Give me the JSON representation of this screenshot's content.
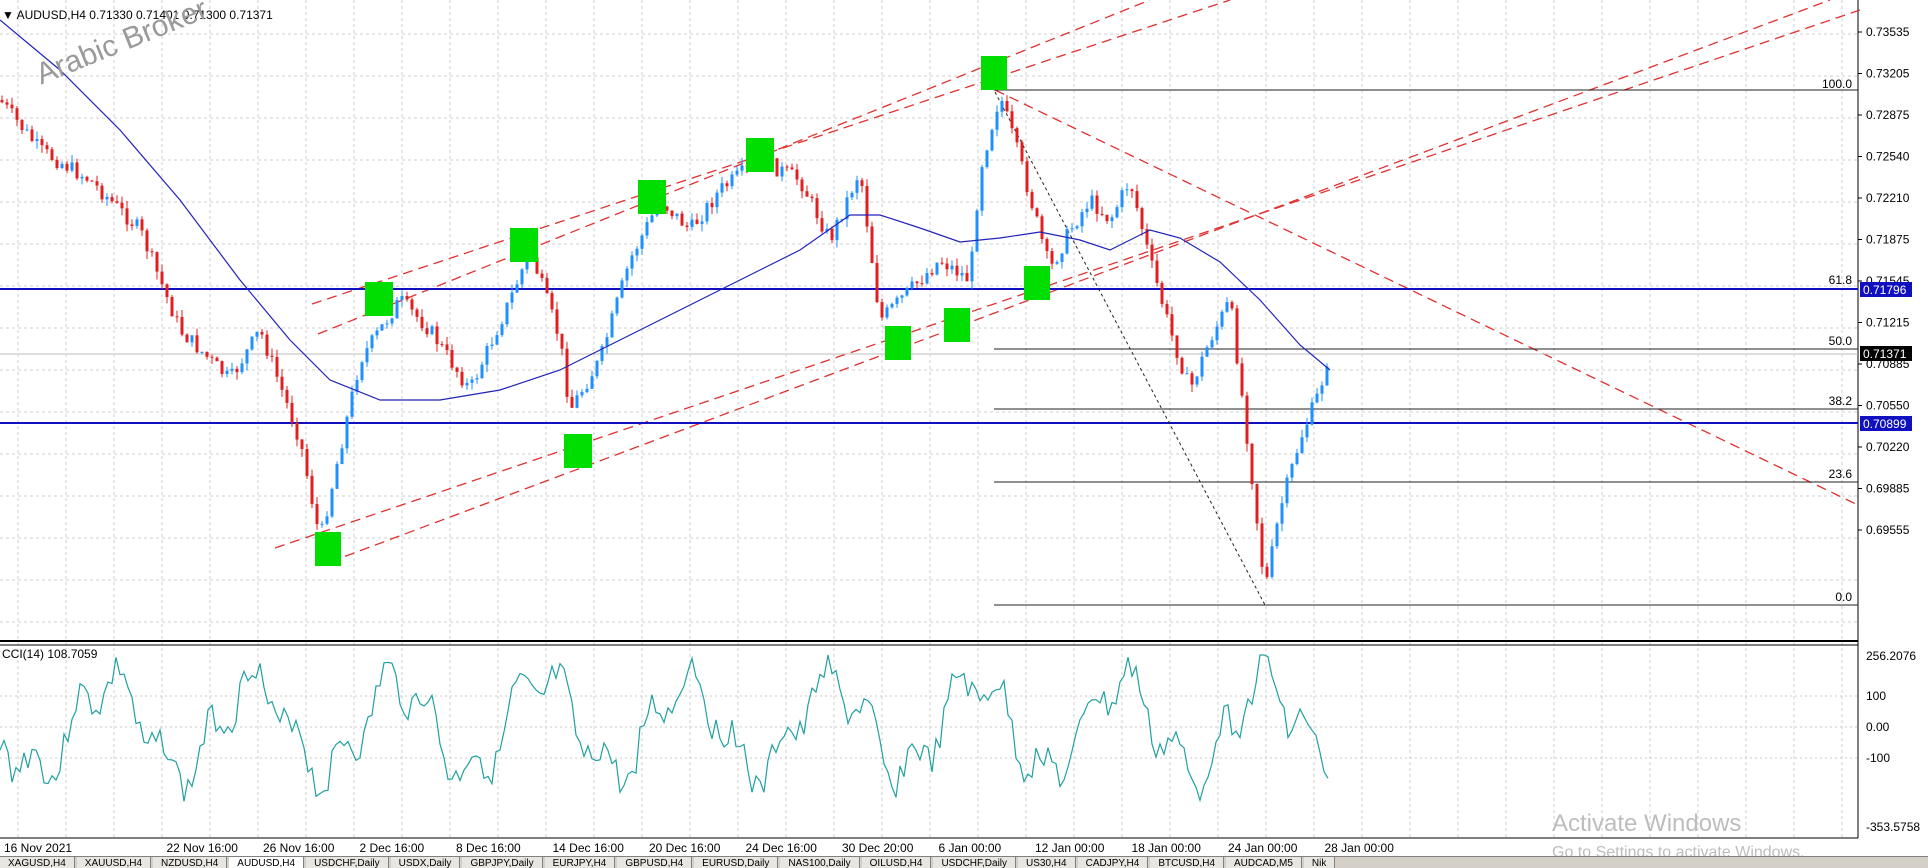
{
  "header": {
    "symbol": "AUDUSD,H4",
    "ohlc": "0.71330 0.71401 0.71300 0.71371"
  },
  "brand": "Arabic Broker",
  "cci_label": "CCI(14) 108.7059",
  "price_axis": [
    "0.73535",
    "0.73205",
    "0.72875",
    "0.72540",
    "0.72210",
    "0.71875",
    "0.71545",
    "0.71215",
    "0.70885",
    "0.70550",
    "0.70220",
    "0.69885",
    "0.69555"
  ],
  "price_tags": {
    "upper_line": "0.71796",
    "lower_line": "0.70899",
    "current": "0.71371"
  },
  "fib_levels": [
    "100.0",
    "61.8",
    "50.0",
    "38.2",
    "23.6",
    "0.0"
  ],
  "cci_axis": [
    "256.2076",
    "100",
    "0.00",
    "-100",
    "-353.5758"
  ],
  "time_axis": [
    "16 Nov 2021",
    "22 Nov 16:00",
    "26 Nov 16:00",
    "2 Dec 16:00",
    "8 Dec 16:00",
    "14 Dec 16:00",
    "20 Dec 16:00",
    "24 Dec 16:00",
    "30 Dec 20:00",
    "6 Jan 00:00",
    "12 Jan 00:00",
    "18 Jan 00:00",
    "24 Jan 00:00",
    "28 Jan 00:00"
  ],
  "watermark": {
    "line1": "Activate Windows",
    "line2": "Go to Settings to activate Windows."
  },
  "tabs": [
    "XAGUSD,H4",
    "XAUUSD,H4",
    "NZDUSD,H4",
    "AUDUSD,H4",
    "USDCHF,Daily",
    "USDX,Daily",
    "GBPJPY,Daily",
    "EURJPY,H4",
    "GBPUSD,H4",
    "EURUSD,Daily",
    "NAS100,Daily",
    "OILUSD,H4",
    "USDCHF,Daily",
    "US30,H4",
    "CADJPY,H4",
    "BTCUSD,H4",
    "AUDCAD,M5",
    "Nik"
  ],
  "active_tab": 3,
  "colors": {
    "bull": "#1e90ff",
    "bear": "#e02020",
    "ma": "#2222bb",
    "hline": "#1010c0",
    "channel": "#e03030",
    "marker": "#00dd00",
    "cci": "#20a0a0",
    "grid": "#c8c8c8"
  }
}
